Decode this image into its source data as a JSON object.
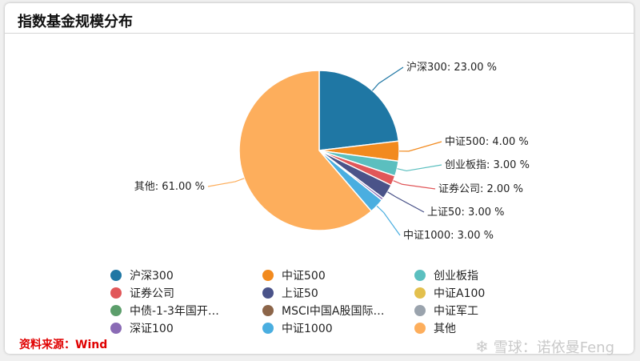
{
  "title": "指数基金规模分布",
  "source": "资料来源：Wind",
  "watermark": {
    "icon": "snowball-logo-icon",
    "text": "雪球：诺依曼Feng"
  },
  "chart_data": {
    "type": "pie",
    "title": "指数基金规模分布",
    "slices": [
      {
        "name": "沪深300",
        "value": 23.0,
        "color": "#1f77a4",
        "label": "沪深300: 23.00 %"
      },
      {
        "name": "中证500",
        "value": 4.0,
        "color": "#f28a1e",
        "label": "中证500: 4.00 %"
      },
      {
        "name": "创业板指",
        "value": 3.0,
        "color": "#5bbfbf",
        "label": "创业板指: 3.00 %"
      },
      {
        "name": "证券公司",
        "value": 2.0,
        "color": "#e15759",
        "label": "证券公司: 2.00 %"
      },
      {
        "name": "上证50",
        "value": 3.0,
        "color": "#4a5389",
        "label": "上证50: 3.00 %"
      },
      {
        "name": "中证A100",
        "value": 0,
        "color": "#e3c04d",
        "label": ""
      },
      {
        "name": "中债-1-3年国开…",
        "value": 0,
        "color": "#5c9e6b",
        "label": ""
      },
      {
        "name": "MSCI中国A股国际…",
        "value": 0,
        "color": "#8c6549",
        "label": ""
      },
      {
        "name": "中证军工",
        "value": 0,
        "color": "#9aa3ad",
        "label": ""
      },
      {
        "name": "深证100",
        "value": 0.5,
        "color": "#8a6bb5",
        "label": ""
      },
      {
        "name": "中证1000",
        "value": 3.0,
        "color": "#4aaee0",
        "label": "中证1000: 3.00 %"
      },
      {
        "name": "其他",
        "value": 61.0,
        "color": "#fdae5c",
        "label": "其他: 61.00 %"
      }
    ],
    "legend": [
      {
        "name": "沪深300",
        "color": "#1f77a4"
      },
      {
        "name": "中证500",
        "color": "#f28a1e"
      },
      {
        "name": "创业板指",
        "color": "#5bbfbf"
      },
      {
        "name": "证券公司",
        "color": "#e15759"
      },
      {
        "name": "上证50",
        "color": "#4a5389"
      },
      {
        "name": "中证A100",
        "color": "#e3c04d"
      },
      {
        "name": "中债-1-3年国开…",
        "color": "#5c9e6b"
      },
      {
        "name": "MSCI中国A股国际…",
        "color": "#8c6549"
      },
      {
        "name": "中证军工",
        "color": "#9aa3ad"
      },
      {
        "name": "深证100",
        "color": "#8a6bb5"
      },
      {
        "name": "中证1000",
        "color": "#4aaee0"
      },
      {
        "name": "其他",
        "color": "#fdae5c"
      }
    ],
    "legend_position": "bottom"
  }
}
